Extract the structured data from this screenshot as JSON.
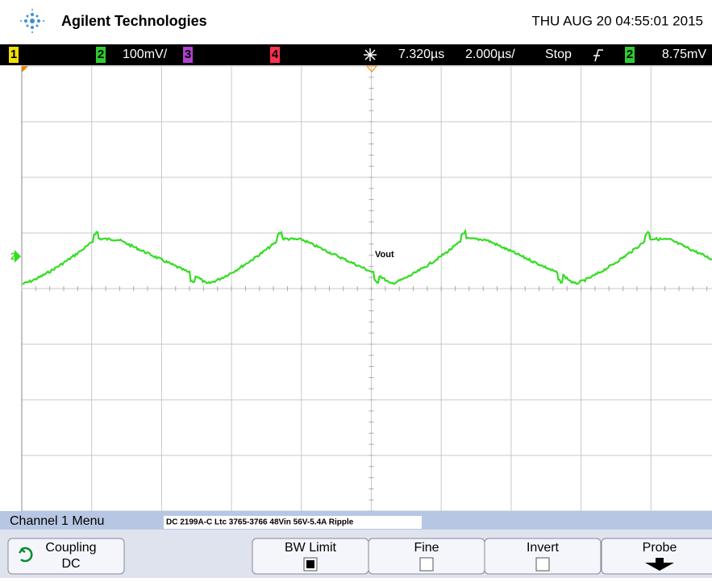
{
  "header": {
    "brand": "Agilent Technologies",
    "datetime": "THU AUG 20 04:55:01 2015"
  },
  "status_bar": {
    "ch1": "1",
    "ch2": "2",
    "ch2_scale": "100mV/",
    "ch3": "3",
    "ch4": "4",
    "delay": "7.320µs",
    "timebase": "2.000µs/",
    "run_state": "Stop",
    "trigger_source": "2",
    "trigger_level": "8.75mV"
  },
  "screen": {
    "channel_marker": "2",
    "trace_label": "Vout"
  },
  "menu": {
    "title": "Channel 1 Menu",
    "note": "DC 2199A-C Ltc 3765-3766 48Vin 56V-5.4A Ripple",
    "buttons": [
      {
        "label": "Coupling",
        "value": "DC"
      },
      {
        "label": "BW Limit"
      },
      {
        "label": "Fine"
      },
      {
        "label": "Invert"
      },
      {
        "label": "Probe"
      }
    ]
  }
}
